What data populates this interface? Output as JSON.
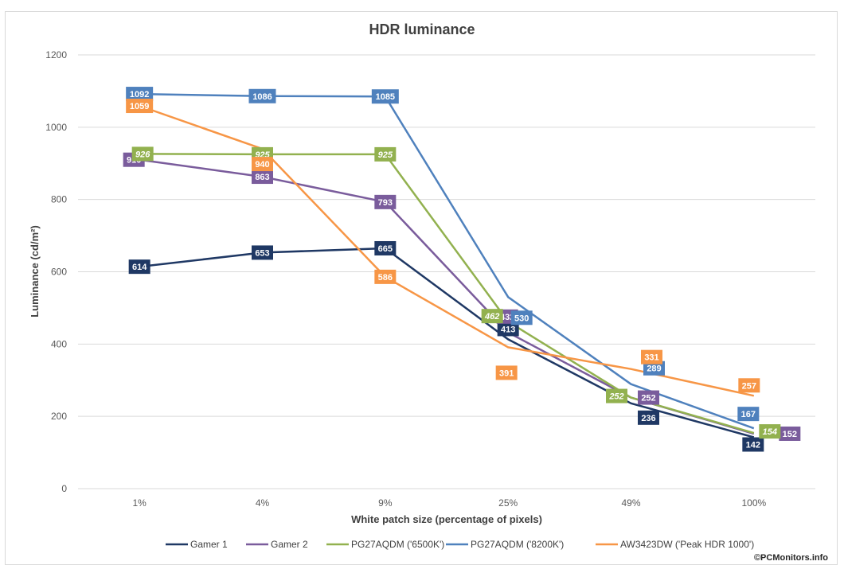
{
  "chart_data": {
    "type": "line",
    "title": "HDR luminance",
    "xlabel": "White patch size (percentage of pixels)",
    "ylabel": "Luminance (cd/m²)",
    "categories": [
      "1%",
      "4%",
      "9%",
      "25%",
      "49%",
      "100%"
    ],
    "y_ticks": [
      "0",
      "200",
      "400",
      "600",
      "800",
      "1000",
      "1200"
    ],
    "ylim": [
      0,
      1200
    ],
    "grid": "horizontal",
    "legend_position": "bottom",
    "series": [
      {
        "name": "Gamer 1",
        "color": "#1f3864",
        "values": [
          614,
          653,
          665,
          413,
          236,
          142
        ],
        "labels": [
          "614",
          "653",
          "665",
          "413",
          "236",
          "142"
        ],
        "italic": false
      },
      {
        "name": "Gamer 2",
        "color": "#7a5c9c",
        "values": [
          910,
          863,
          793,
          432,
          252,
          152
        ],
        "labels": [
          "910",
          "863",
          "793",
          "432",
          "252",
          "152"
        ],
        "italic": false
      },
      {
        "name": "PG27AQDM ('6500K')",
        "color": "#92b14f",
        "values": [
          926,
          925,
          925,
          462,
          252,
          154
        ],
        "labels": [
          "926",
          "925",
          "925",
          "462",
          "252",
          "154"
        ],
        "italic": true
      },
      {
        "name": "PG27AQDM ('8200K')",
        "color": "#4f81bd",
        "values": [
          1092,
          1086,
          1085,
          530,
          289,
          167
        ],
        "labels": [
          "1092",
          "1086",
          "1085",
          "530",
          "289",
          "167"
        ],
        "italic": false
      },
      {
        "name": "AW3423DW ('Peak HDR 1000')",
        "color": "#f79646",
        "values": [
          1059,
          940,
          586,
          391,
          331,
          257
        ],
        "labels": [
          "1059",
          "940",
          "586",
          "391",
          "331",
          "257"
        ],
        "italic": false
      }
    ],
    "copyright": "©PCMonitors.info"
  }
}
